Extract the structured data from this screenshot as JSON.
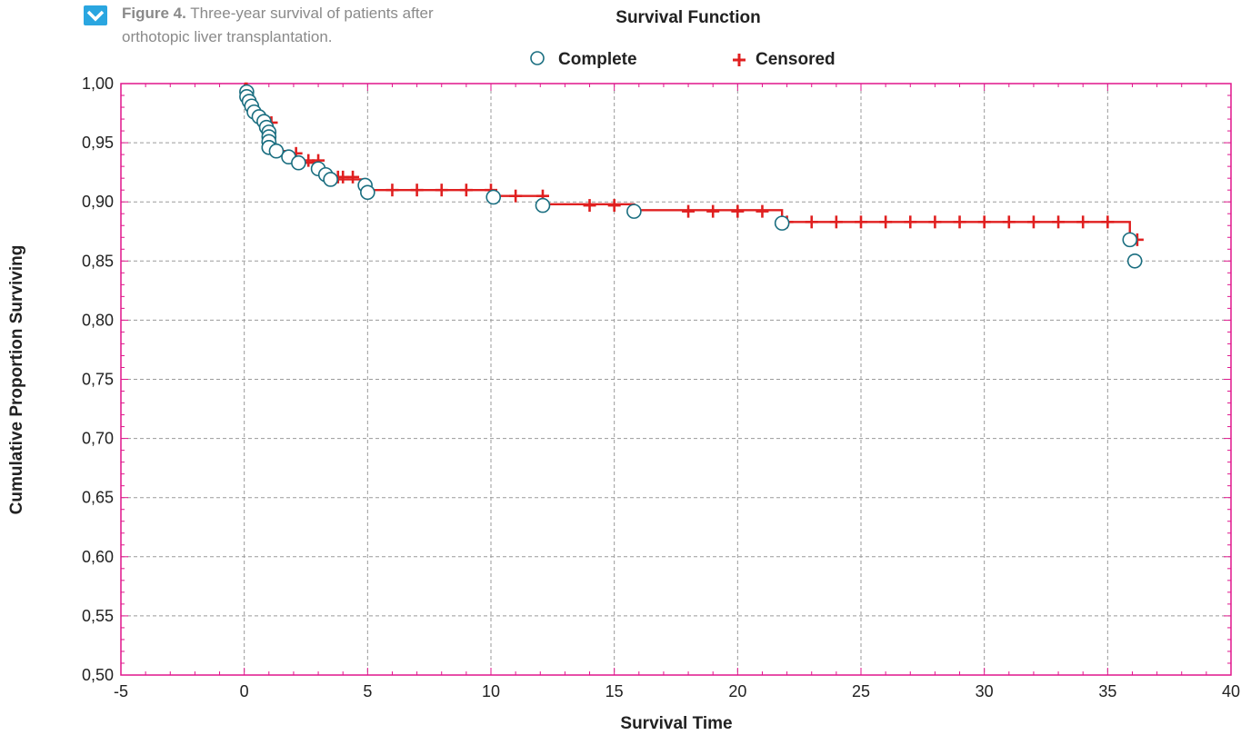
{
  "caption": {
    "label": "Figure 4.",
    "text": "Three-year survival of patients after orthotopic liver transplantation."
  },
  "chart_data": {
    "type": "line",
    "title": "Survival Function",
    "xlabel": "Survival Time",
    "ylabel": "Cumulative Proportion Surviving",
    "xlim": [
      -5,
      40
    ],
    "ylim": [
      0.5,
      1.0
    ],
    "xticks": [
      -5,
      0,
      5,
      10,
      15,
      20,
      25,
      30,
      35,
      40
    ],
    "yticks": [
      0.5,
      0.55,
      0.6,
      0.65,
      0.7,
      0.75,
      0.8,
      0.85,
      0.9,
      0.95,
      1.0
    ],
    "ytick_labels": [
      "0,50",
      "0,55",
      "0,60",
      "0,65",
      "0,70",
      "0,75",
      "0,80",
      "0,85",
      "0,90",
      "0,95",
      "1,00"
    ],
    "grid": true,
    "legend": {
      "position": "top",
      "entries": [
        "Complete",
        "Censored"
      ]
    },
    "colors": {
      "line": "#e02020",
      "complete_marker": "#1a6e80",
      "frame": "#e0158c",
      "grid": "#9a9a9a"
    },
    "series": [
      {
        "name": "Complete",
        "marker": "circle",
        "x": [
          0.1,
          0.1,
          0.2,
          0.3,
          0.4,
          0.6,
          0.8,
          0.9,
          1.0,
          1.0,
          1.0,
          1.0,
          1.0,
          1.3,
          1.8,
          2.2,
          3.0,
          3.3,
          3.5,
          4.9,
          5.0,
          10.1,
          12.1,
          15.8,
          21.8,
          35.9,
          36.1
        ],
        "y": [
          0.993,
          0.989,
          0.985,
          0.981,
          0.976,
          0.972,
          0.968,
          0.963,
          0.959,
          0.955,
          0.951,
          0.946,
          0.946,
          0.943,
          0.938,
          0.933,
          0.928,
          0.923,
          0.919,
          0.914,
          0.908,
          0.904,
          0.897,
          0.892,
          0.882,
          0.868,
          0.85
        ]
      },
      {
        "name": "Censored",
        "marker": "plus",
        "x": [
          1.1,
          2.1,
          2.6,
          3.0,
          3.8,
          4.0,
          4.4,
          6.0,
          7.0,
          8.0,
          9.0,
          10.0,
          11.0,
          12.1,
          14.0,
          15.0,
          18.0,
          19.0,
          20.0,
          21.0,
          22.0,
          23.0,
          24.0,
          25.0,
          26.0,
          27.0,
          28.0,
          29.0,
          30.0,
          31.0,
          32.0,
          33.0,
          34.0,
          35.0,
          36.2
        ],
        "y": [
          0.967,
          0.941,
          0.935,
          0.935,
          0.921,
          0.921,
          0.921,
          0.91,
          0.91,
          0.91,
          0.91,
          0.91,
          0.905,
          0.905,
          0.897,
          0.897,
          0.892,
          0.892,
          0.892,
          0.892,
          0.883,
          0.883,
          0.883,
          0.883,
          0.883,
          0.883,
          0.883,
          0.883,
          0.883,
          0.883,
          0.883,
          0.883,
          0.883,
          0.883,
          0.868
        ]
      }
    ],
    "step_curve": {
      "x": [
        0,
        0.1,
        0.1,
        0.2,
        0.3,
        0.4,
        0.6,
        0.8,
        0.9,
        1.0,
        1.3,
        1.8,
        2.2,
        3.0,
        3.3,
        3.5,
        4.9,
        5.0,
        10.1,
        12.1,
        15.8,
        21.8,
        35.9,
        36.1,
        36.2
      ],
      "y": [
        1.0,
        0.993,
        0.989,
        0.985,
        0.981,
        0.976,
        0.972,
        0.968,
        0.963,
        0.946,
        0.943,
        0.938,
        0.933,
        0.928,
        0.923,
        0.919,
        0.914,
        0.91,
        0.905,
        0.898,
        0.893,
        0.883,
        0.868,
        0.868,
        0.868
      ]
    }
  }
}
